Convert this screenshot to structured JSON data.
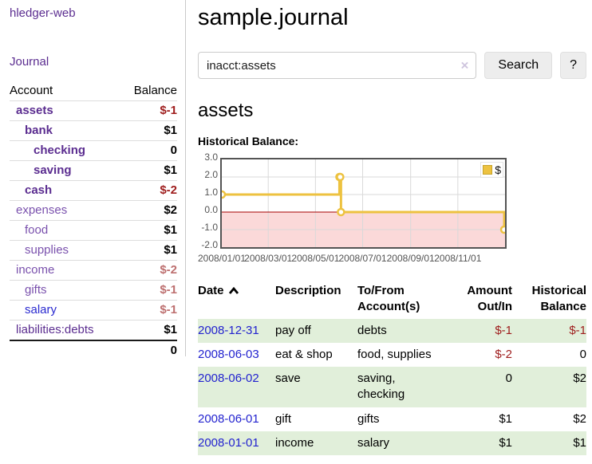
{
  "app": {
    "title": "hledger-web",
    "nav_journal": "Journal"
  },
  "colors": {
    "accent_purple": "#5b2d90",
    "link_blue": "#2a2ad0",
    "negative_red": "#9e1c1c",
    "muted_negative_red": "#bd6f6f",
    "row_stripe_green": "#e1efda",
    "series_yellow": "#edc240",
    "negative_region_pink": "#fbd9d9"
  },
  "sidebar": {
    "header": {
      "account": "Account",
      "balance": "Balance"
    },
    "accounts": [
      {
        "name": "assets",
        "balance": "$-1"
      },
      {
        "name": "bank",
        "balance": "$1"
      },
      {
        "name": "checking",
        "balance": "0"
      },
      {
        "name": "saving",
        "balance": "$1"
      },
      {
        "name": "cash",
        "balance": "$-2"
      },
      {
        "name": "expenses",
        "balance": "$2"
      },
      {
        "name": "food",
        "balance": "$1"
      },
      {
        "name": "supplies",
        "balance": "$1"
      },
      {
        "name": "income",
        "balance": "$-2"
      },
      {
        "name": "gifts",
        "balance": "$-1"
      },
      {
        "name": "salary",
        "balance": "$-1"
      },
      {
        "name": "liabilities:debts",
        "balance": "$1"
      }
    ],
    "total": "0"
  },
  "header": {
    "title": "sample.journal"
  },
  "search": {
    "value": "inacct:assets",
    "clear_icon": "×",
    "button": "Search",
    "help_button": "?"
  },
  "account_page": {
    "title": "assets",
    "chart_label": "Historical Balance:"
  },
  "chart_data": {
    "type": "line",
    "title": "Historical Balance:",
    "step": true,
    "series": [
      {
        "name": "$",
        "color": "#edc240",
        "points": [
          [
            "2008/01/01",
            1
          ],
          [
            "2008/06/01",
            2
          ],
          [
            "2008/06/02",
            2
          ],
          [
            "2008/06/03",
            0
          ],
          [
            "2008/12/31",
            -1
          ]
        ]
      }
    ],
    "ylim": [
      -2,
      3
    ],
    "yticks": [
      "3.0",
      "2.0",
      "1.0",
      "0.0",
      "-1.0",
      "-2.0"
    ],
    "xticks": [
      "2008/01/01",
      "2008/03/01",
      "2008/05/01",
      "2008/07/01",
      "2008/09/01",
      "2008/11/01"
    ],
    "x_span_days": 366,
    "grid": true,
    "legend_position": "top-right",
    "negative_region_color": "#fbd9d9",
    "zero_line_color": "#a40000"
  },
  "register": {
    "sort_icon": "chevron-up",
    "columns": {
      "date": "Date",
      "description": "Description",
      "accounts_l1": "To/From",
      "accounts_l2": "Account(s)",
      "amount_l1": "Amount",
      "amount_l2": "Out/In",
      "balance_l1": "Historical",
      "balance_l2": "Balance"
    },
    "rows": [
      {
        "date": "2008-12-31",
        "description": "pay off",
        "accounts": "debts",
        "amount": "$-1",
        "balance": "$-1"
      },
      {
        "date": "2008-06-03",
        "description": "eat & shop",
        "accounts": "food, supplies",
        "amount": "$-2",
        "balance": "0"
      },
      {
        "date": "2008-06-02",
        "description": "save",
        "accounts": "saving, checking",
        "amount": "0",
        "balance": "$2"
      },
      {
        "date": "2008-06-01",
        "description": "gift",
        "accounts": "gifts",
        "amount": "$1",
        "balance": "$2"
      },
      {
        "date": "2008-01-01",
        "description": "income",
        "accounts": "salary",
        "amount": "$1",
        "balance": "$1"
      }
    ]
  }
}
